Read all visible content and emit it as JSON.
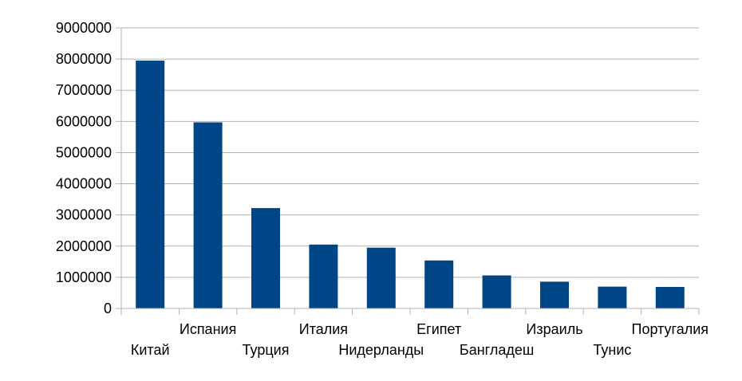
{
  "chart_data": {
    "type": "bar",
    "categories": [
      "Китай",
      "Испания",
      "Турция",
      "Италия",
      "Нидерланды",
      "Египет",
      "Бангладеш",
      "Израиль",
      "Тунис",
      "Португалия"
    ],
    "values": [
      7950000,
      5970000,
      3220000,
      2050000,
      1950000,
      1540000,
      1060000,
      860000,
      700000,
      690000
    ],
    "ylim": [
      0,
      9000000
    ],
    "yticks": [
      "0",
      "1000000",
      "2000000",
      "3000000",
      "4000000",
      "5000000",
      "6000000",
      "7000000",
      "8000000",
      "9000000"
    ],
    "title": "",
    "xlabel": "",
    "ylabel": "",
    "grid": true,
    "legend": "none",
    "bar_color": "#004586"
  }
}
